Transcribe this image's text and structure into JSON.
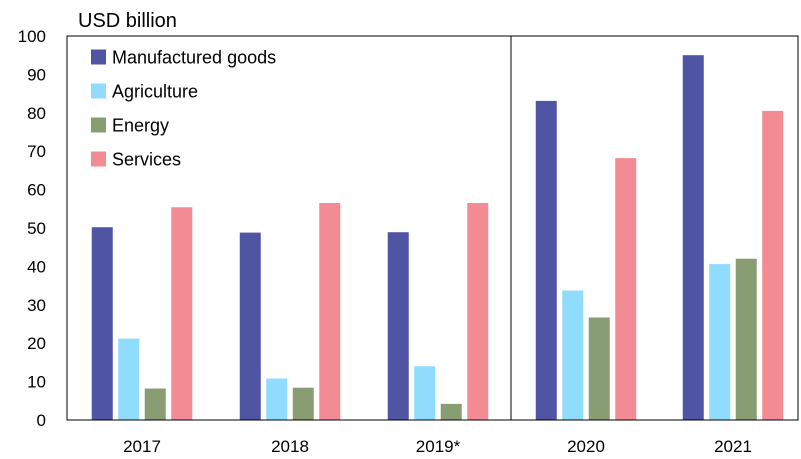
{
  "chart_data": {
    "type": "bar",
    "ylabel": "USD billion",
    "xlabel": "",
    "ylim": [
      0,
      100
    ],
    "yticks": [
      0,
      10,
      20,
      30,
      40,
      50,
      60,
      70,
      80,
      90,
      100
    ],
    "categories": [
      "2017",
      "2018",
      "2019*",
      "2020",
      "2021"
    ],
    "series": [
      {
        "name": "Manufactured goods",
        "color": "#4f54a3",
        "values": [
          50.2,
          48.8,
          48.9,
          83.1,
          95.0
        ]
      },
      {
        "name": "Agriculture",
        "color": "#8fdcff",
        "values": [
          21.2,
          10.8,
          14.0,
          33.7,
          40.6
        ]
      },
      {
        "name": "Energy",
        "color": "#889e72",
        "values": [
          8.2,
          8.4,
          4.2,
          26.7,
          42.0
        ]
      },
      {
        "name": "Services",
        "color": "#f28b93",
        "values": [
          55.4,
          56.5,
          56.5,
          68.2,
          80.5
        ]
      }
    ],
    "legend": "top-left",
    "grid": false,
    "divider_after_category": "2019*"
  }
}
